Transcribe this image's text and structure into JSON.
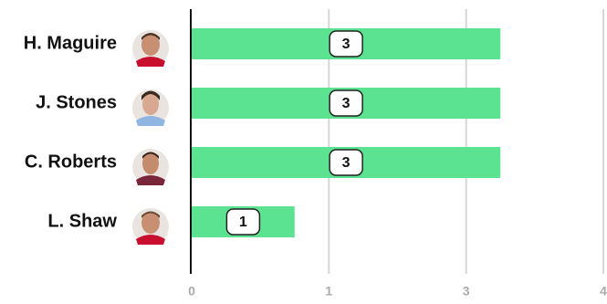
{
  "chart_data": {
    "type": "hbar",
    "categories": [
      "H. Maguire",
      "J. Stones",
      "C. Roberts",
      "L. Shaw"
    ],
    "values": [
      3,
      3,
      3,
      1
    ],
    "color": "#5ce391",
    "xlim": [
      0,
      4
    ],
    "xticks": [
      0,
      {
        "value": 1.333,
        "label": "1"
      },
      {
        "value": 2.667,
        "label": "3"
      },
      4
    ],
    "grid": true
  }
}
